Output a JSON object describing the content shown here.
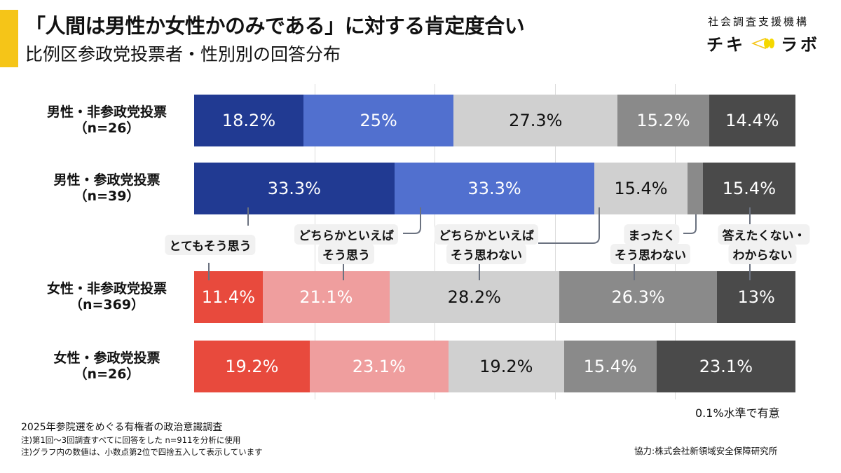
{
  "header": {
    "title": "「人間は男性か女性かのみである」に対する肯定度合い",
    "subtitle": "比例区参政党投票者・性別別の回答分布"
  },
  "logo": {
    "org": "社会調査支援機構",
    "name_left": "チキ",
    "name_right": "ラボ"
  },
  "chart_data": {
    "type": "bar",
    "stacked": true,
    "orientation": "horizontal",
    "title": "「人間は男性か女性かのみである」に対する肯定度合い",
    "xlim": [
      0,
      100
    ],
    "grid": true,
    "categories": [
      "男性・非参政党投票\n（n=26）",
      "男性・参政党投票\n（n=39）",
      "女性・非参政党投票\n（n=369）",
      "女性・参政党投票\n（n=26）"
    ],
    "category_labels": [
      [
        "男性・非参政党投票",
        "（n=26）"
      ],
      [
        "男性・参政党投票",
        "（n=39）"
      ],
      [
        "女性・非参政党投票",
        "（n=369）"
      ],
      [
        "女性・参政党投票",
        "（n=26）"
      ]
    ],
    "series": [
      {
        "name": "とてもそう思う",
        "values": [
          18.2,
          33.3,
          11.4,
          19.2
        ],
        "labels": [
          "18.2%",
          "33.3%",
          "11.4%",
          "19.2%"
        ]
      },
      {
        "name": "どちらかといえばそう思う",
        "values": [
          25,
          33.3,
          21.1,
          23.1
        ],
        "labels": [
          "25%",
          "33.3%",
          "21.1%",
          "23.1%"
        ]
      },
      {
        "name": "どちらかといえばそう思わない",
        "values": [
          27.3,
          15.4,
          28.2,
          19.2
        ],
        "labels": [
          "27.3%",
          "15.4%",
          "28.2%",
          "19.2%"
        ]
      },
      {
        "name": "まったくそう思わない",
        "values": [
          15.2,
          2.6,
          26.3,
          15.4
        ],
        "labels": [
          "15.2%",
          "",
          "26.3%",
          "15.4%"
        ]
      },
      {
        "name": "答えたくない・わからない",
        "values": [
          14.4,
          15.4,
          13,
          23.1
        ],
        "labels": [
          "14.4%",
          "15.4%",
          "13%",
          "23.1%"
        ]
      }
    ],
    "colors": {
      "male": [
        "#213a92",
        "#5170cf",
        "#d0d0d0",
        "#8a8a8a",
        "#4a4a4a"
      ],
      "female": [
        "#e84a3d",
        "#ef9e9e",
        "#d0d0d0",
        "#8a8a8a",
        "#4a4a4a"
      ],
      "text": [
        "#ffffff",
        "#ffffff",
        "#111111",
        "#ffffff",
        "#ffffff"
      ]
    },
    "legend_callouts": [
      [
        "とてもそう思う"
      ],
      [
        "どちらかといえば",
        "そう思う"
      ],
      [
        "どちらかといえば",
        "そう思わない"
      ],
      [
        "まったく",
        "そう思わない"
      ],
      [
        "答えたくない・",
        "わからない"
      ]
    ],
    "annotation": "0.1%水準で有意"
  },
  "footer": {
    "source": "2025年参院選をめぐる有権者の政治意識調査",
    "note1": "注)第1回〜3回調査すべてに回答をした n=911を分析に使用",
    "note2": "注)グラフ内の数値は、小数点第2位で四捨五入して表示しています",
    "cooperation": "協力:株式会社新領域安全保障研究所"
  }
}
